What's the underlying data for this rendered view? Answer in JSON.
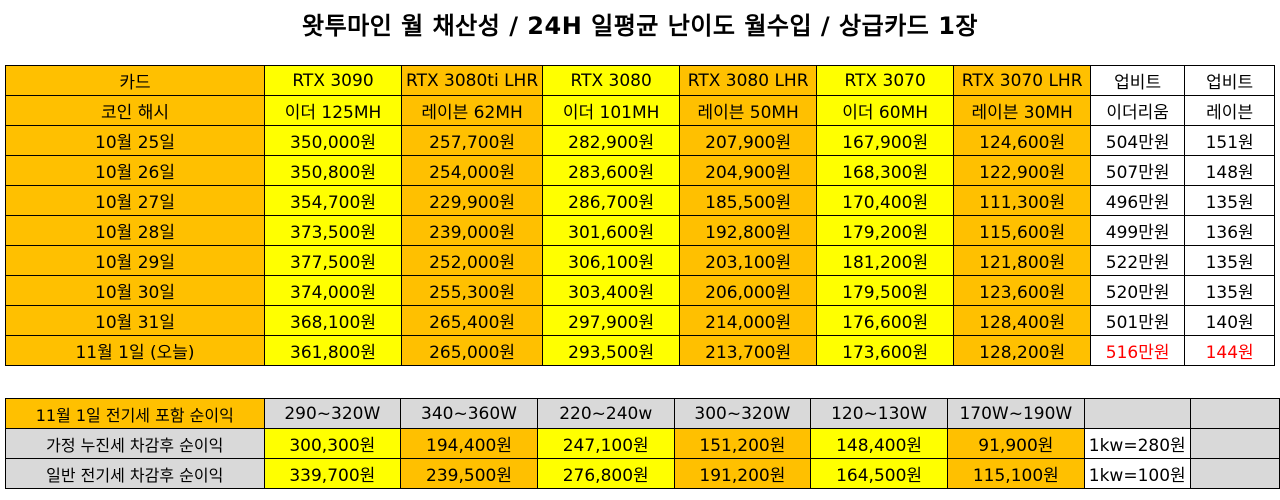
{
  "title": "왓투마인 월 채산성 / 24H 일평균 난이도 월수입 / 상급카드 1장",
  "main_table": {
    "header_card": [
      "카드",
      "RTX 3090",
      "RTX 3080ti LHR",
      "RTX 3080",
      "RTX 3080 LHR",
      "RTX 3070",
      "RTX 3070 LHR",
      "업비트",
      "업비트"
    ],
    "header_hash": [
      "코인 해시",
      "이더 125MH",
      "레이븐 62MH",
      "이더 101MH",
      "레이븐 50MH",
      "이더 60MH",
      "레이븐 30MH",
      "이더리움",
      "레이븐"
    ],
    "rows": [
      [
        "10월 25일",
        "350,000원",
        "257,700원",
        "282,900원",
        "207,900원",
        "167,900원",
        "124,600원",
        "504만원",
        "151원"
      ],
      [
        "10월 26일",
        "350,800원",
        "254,000원",
        "283,600원",
        "204,900원",
        "168,300원",
        "122,900원",
        "507만원",
        "148원"
      ],
      [
        "10월 27일",
        "354,700원",
        "229,900원",
        "286,700원",
        "185,500원",
        "170,400원",
        "111,300원",
        "496만원",
        "135원"
      ],
      [
        "10월 28일",
        "373,500원",
        "239,000원",
        "301,600원",
        "192,800원",
        "179,200원",
        "115,600원",
        "499만원",
        "136원"
      ],
      [
        "10월 29일",
        "377,500원",
        "252,000원",
        "306,100원",
        "203,100원",
        "181,200원",
        "121,800원",
        "522만원",
        "135원"
      ],
      [
        "10월 30일",
        "374,000원",
        "255,300원",
        "303,400원",
        "206,000원",
        "179,500원",
        "123,600원",
        "520만원",
        "135원"
      ],
      [
        "10월 31일",
        "368,100원",
        "265,400원",
        "297,900원",
        "214,000원",
        "176,600원",
        "128,400원",
        "501만원",
        "140원"
      ],
      [
        "11월 1일 (오늘)",
        "361,800원",
        "265,000원",
        "293,500원",
        "213,700원",
        "173,600원",
        "128,200원",
        "516만원",
        "144원"
      ]
    ]
  },
  "bottom_table": {
    "power_row": [
      "11월 1일 전기세 포함 순이익",
      "290~320W",
      "340~360W",
      "220~240w",
      "300~320W",
      "120~130W",
      "170W~190W",
      "",
      ""
    ],
    "progressive_row": [
      "가정 누진세 차감후 순이익",
      "300,300원",
      "194,400원",
      "247,100원",
      "151,200원",
      "148,400원",
      "91,900원",
      "1kw=280원",
      ""
    ],
    "general_row": [
      "일반 전기세 차감후 순이익",
      "339,700원",
      "239,500원",
      "276,800원",
      "191,200원",
      "164,500원",
      "115,100원",
      "1kw=100원",
      ""
    ]
  },
  "colors": {
    "orange": "#ffc000",
    "yellow": "#ffff00",
    "gray": "#d9d9d9",
    "red_text": "#ff0000"
  }
}
